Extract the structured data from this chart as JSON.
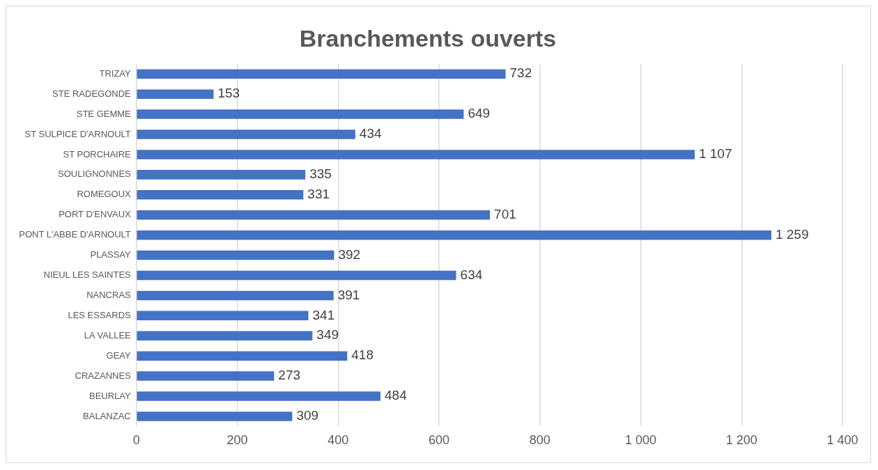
{
  "chart_data": {
    "type": "bar",
    "orientation": "horizontal",
    "title": "Branchements ouverts",
    "categories": [
      "TRIZAY",
      "STE RADEGONDE",
      "STE GEMME",
      "ST SULPICE D'ARNOULT",
      "ST PORCHAIRE",
      "SOULIGNONNES",
      "ROMEGOUX",
      "PORT D'ENVAUX",
      "PONT L'ABBE D'ARNOULT",
      "PLASSAY",
      "NIEUL LES SAINTES",
      "NANCRAS",
      "LES ESSARDS",
      "LA VALLEE",
      "GEAY",
      "CRAZANNES",
      "BEURLAY",
      "BALANZAC"
    ],
    "values": [
      732,
      153,
      649,
      434,
      1107,
      335,
      331,
      701,
      1259,
      392,
      634,
      391,
      341,
      349,
      418,
      273,
      484,
      309
    ],
    "value_labels": [
      "732",
      "153",
      "649",
      "434",
      "1 107",
      "335",
      "331",
      "701",
      "1 259",
      "392",
      "634",
      "391",
      "341",
      "349",
      "418",
      "273",
      "484",
      "309"
    ],
    "color": "#4472c4",
    "xlim": [
      0,
      1400
    ],
    "xticks": [
      0,
      200,
      400,
      600,
      800,
      {
        "value": 1000,
        "label": "1 000"
      },
      {
        "value": 1200,
        "label": "1 200"
      },
      {
        "value": 1400,
        "label": "1 400"
      }
    ],
    "grid": "x",
    "legend": false
  }
}
